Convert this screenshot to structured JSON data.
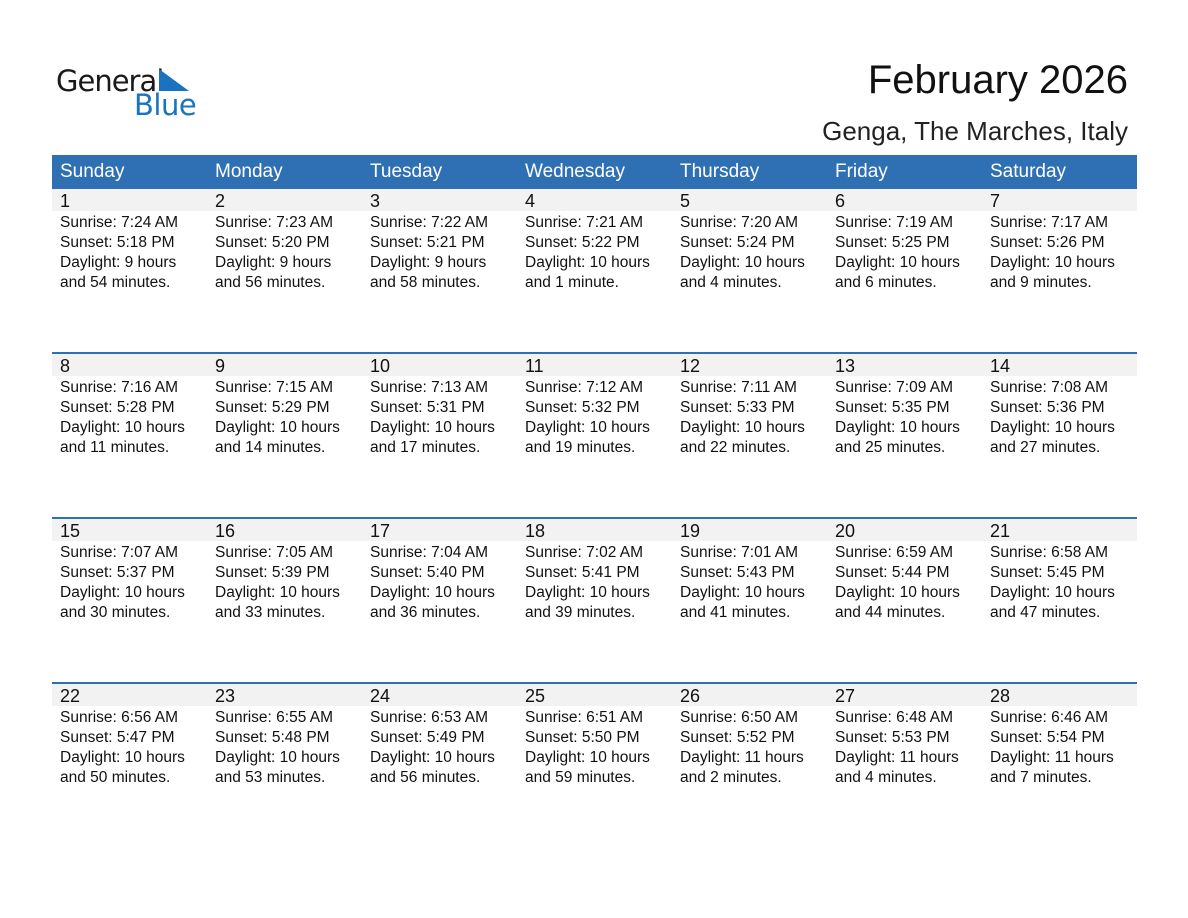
{
  "logo": {
    "text1": "General",
    "text2": "Blue"
  },
  "title": "February 2026",
  "location": "Genga, The Marches, Italy",
  "colors": {
    "header": "#2e70b3",
    "date_row": "#f2f2f2",
    "logo_blue": "#1a73c0"
  },
  "weekdays": [
    "Sunday",
    "Monday",
    "Tuesday",
    "Wednesday",
    "Thursday",
    "Friday",
    "Saturday"
  ],
  "weeks": [
    [
      {
        "d": "1",
        "sr": "Sunrise: 7:24 AM",
        "ss": "Sunset: 5:18 PM",
        "dl": "Daylight: 9 hours",
        "dm": "and 54 minutes."
      },
      {
        "d": "2",
        "sr": "Sunrise: 7:23 AM",
        "ss": "Sunset: 5:20 PM",
        "dl": "Daylight: 9 hours",
        "dm": "and 56 minutes."
      },
      {
        "d": "3",
        "sr": "Sunrise: 7:22 AM",
        "ss": "Sunset: 5:21 PM",
        "dl": "Daylight: 9 hours",
        "dm": "and 58 minutes."
      },
      {
        "d": "4",
        "sr": "Sunrise: 7:21 AM",
        "ss": "Sunset: 5:22 PM",
        "dl": "Daylight: 10 hours",
        "dm": "and 1 minute."
      },
      {
        "d": "5",
        "sr": "Sunrise: 7:20 AM",
        "ss": "Sunset: 5:24 PM",
        "dl": "Daylight: 10 hours",
        "dm": "and 4 minutes."
      },
      {
        "d": "6",
        "sr": "Sunrise: 7:19 AM",
        "ss": "Sunset: 5:25 PM",
        "dl": "Daylight: 10 hours",
        "dm": "and 6 minutes."
      },
      {
        "d": "7",
        "sr": "Sunrise: 7:17 AM",
        "ss": "Sunset: 5:26 PM",
        "dl": "Daylight: 10 hours",
        "dm": "and 9 minutes."
      }
    ],
    [
      {
        "d": "8",
        "sr": "Sunrise: 7:16 AM",
        "ss": "Sunset: 5:28 PM",
        "dl": "Daylight: 10 hours",
        "dm": "and 11 minutes."
      },
      {
        "d": "9",
        "sr": "Sunrise: 7:15 AM",
        "ss": "Sunset: 5:29 PM",
        "dl": "Daylight: 10 hours",
        "dm": "and 14 minutes."
      },
      {
        "d": "10",
        "sr": "Sunrise: 7:13 AM",
        "ss": "Sunset: 5:31 PM",
        "dl": "Daylight: 10 hours",
        "dm": "and 17 minutes."
      },
      {
        "d": "11",
        "sr": "Sunrise: 7:12 AM",
        "ss": "Sunset: 5:32 PM",
        "dl": "Daylight: 10 hours",
        "dm": "and 19 minutes."
      },
      {
        "d": "12",
        "sr": "Sunrise: 7:11 AM",
        "ss": "Sunset: 5:33 PM",
        "dl": "Daylight: 10 hours",
        "dm": "and 22 minutes."
      },
      {
        "d": "13",
        "sr": "Sunrise: 7:09 AM",
        "ss": "Sunset: 5:35 PM",
        "dl": "Daylight: 10 hours",
        "dm": "and 25 minutes."
      },
      {
        "d": "14",
        "sr": "Sunrise: 7:08 AM",
        "ss": "Sunset: 5:36 PM",
        "dl": "Daylight: 10 hours",
        "dm": "and 27 minutes."
      }
    ],
    [
      {
        "d": "15",
        "sr": "Sunrise: 7:07 AM",
        "ss": "Sunset: 5:37 PM",
        "dl": "Daylight: 10 hours",
        "dm": "and 30 minutes."
      },
      {
        "d": "16",
        "sr": "Sunrise: 7:05 AM",
        "ss": "Sunset: 5:39 PM",
        "dl": "Daylight: 10 hours",
        "dm": "and 33 minutes."
      },
      {
        "d": "17",
        "sr": "Sunrise: 7:04 AM",
        "ss": "Sunset: 5:40 PM",
        "dl": "Daylight: 10 hours",
        "dm": "and 36 minutes."
      },
      {
        "d": "18",
        "sr": "Sunrise: 7:02 AM",
        "ss": "Sunset: 5:41 PM",
        "dl": "Daylight: 10 hours",
        "dm": "and 39 minutes."
      },
      {
        "d": "19",
        "sr": "Sunrise: 7:01 AM",
        "ss": "Sunset: 5:43 PM",
        "dl": "Daylight: 10 hours",
        "dm": "and 41 minutes."
      },
      {
        "d": "20",
        "sr": "Sunrise: 6:59 AM",
        "ss": "Sunset: 5:44 PM",
        "dl": "Daylight: 10 hours",
        "dm": "and 44 minutes."
      },
      {
        "d": "21",
        "sr": "Sunrise: 6:58 AM",
        "ss": "Sunset: 5:45 PM",
        "dl": "Daylight: 10 hours",
        "dm": "and 47 minutes."
      }
    ],
    [
      {
        "d": "22",
        "sr": "Sunrise: 6:56 AM",
        "ss": "Sunset: 5:47 PM",
        "dl": "Daylight: 10 hours",
        "dm": "and 50 minutes."
      },
      {
        "d": "23",
        "sr": "Sunrise: 6:55 AM",
        "ss": "Sunset: 5:48 PM",
        "dl": "Daylight: 10 hours",
        "dm": "and 53 minutes."
      },
      {
        "d": "24",
        "sr": "Sunrise: 6:53 AM",
        "ss": "Sunset: 5:49 PM",
        "dl": "Daylight: 10 hours",
        "dm": "and 56 minutes."
      },
      {
        "d": "25",
        "sr": "Sunrise: 6:51 AM",
        "ss": "Sunset: 5:50 PM",
        "dl": "Daylight: 10 hours",
        "dm": "and 59 minutes."
      },
      {
        "d": "26",
        "sr": "Sunrise: 6:50 AM",
        "ss": "Sunset: 5:52 PM",
        "dl": "Daylight: 11 hours",
        "dm": "and 2 minutes."
      },
      {
        "d": "27",
        "sr": "Sunrise: 6:48 AM",
        "ss": "Sunset: 5:53 PM",
        "dl": "Daylight: 11 hours",
        "dm": "and 4 minutes."
      },
      {
        "d": "28",
        "sr": "Sunrise: 6:46 AM",
        "ss": "Sunset: 5:54 PM",
        "dl": "Daylight: 11 hours",
        "dm": "and 7 minutes."
      }
    ]
  ]
}
